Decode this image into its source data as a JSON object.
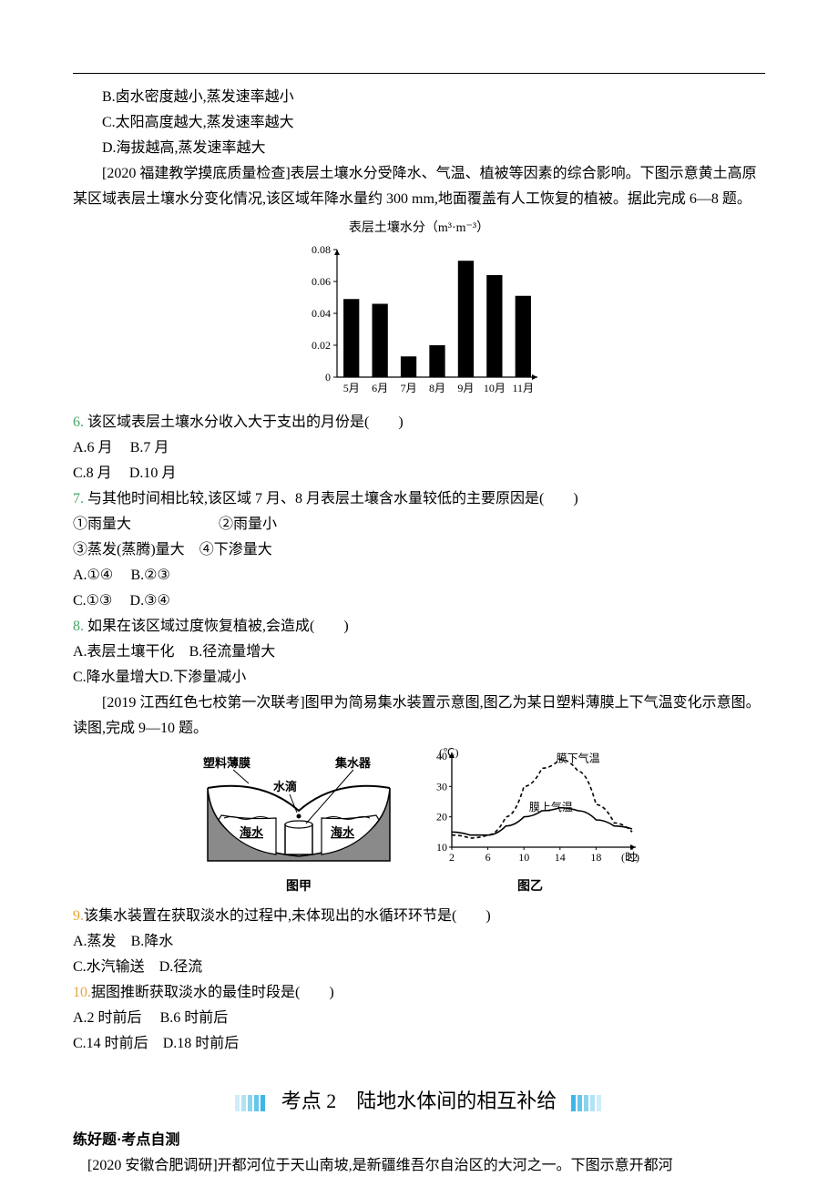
{
  "top_options": {
    "B": "B.卤水密度越小,蒸发速率越小",
    "C": "C.太阳高度越大,蒸发速率越大",
    "D": "D.海拔越高,蒸发速率越大"
  },
  "intro1": {
    "prefix": "[2020 福建教学摸底质量检查]表层土壤水分受降水、气温、植被等因素的综合影响。下图示意黄土高原某区域表层土壤水分变化情况,该区域年降水量约 300 mm,地面覆盖有人工恢复的植被。据此完成 6—8 题。"
  },
  "chart1": {
    "type": "bar",
    "title": "表层土壤水分（m³·m⁻³）",
    "x_labels": [
      "5月",
      "6月",
      "7月",
      "8月",
      "9月",
      "10月",
      "11月"
    ],
    "values": [
      0.049,
      0.046,
      0.013,
      0.02,
      0.073,
      0.064,
      0.051
    ],
    "ylim": [
      0,
      0.08
    ],
    "yticks": [
      0,
      0.02,
      0.04,
      0.06,
      0.08
    ],
    "bar_color": "#000000",
    "axis_color": "#000000",
    "bar_width": 0.55,
    "label_fontsize": 12,
    "title_fontsize": 13
  },
  "q6": {
    "num": "6.",
    "stem": " 该区域表层土壤水分收入大于支出的月份是(　　)",
    "A": "A.6 月",
    "B": "B.7 月",
    "C": "C.8 月",
    "D": "D.10 月"
  },
  "q7": {
    "num": "7.",
    "stem": " 与其他时间相比较,该区域 7 月、8 月表层土壤含水量较低的主要原因是(　　)",
    "c1": "①雨量大",
    "c2": "②雨量小",
    "c3": "③蒸发(蒸腾)量大",
    "c4": "④下渗量大",
    "A": "A.①④",
    "B": "B.②③",
    "C": "C.①③",
    "D": "D.③④"
  },
  "q8": {
    "num": "8.",
    "stem": " 如果在该区域过度恢复植被,会造成(　　)",
    "A": "A.表层土壤干化",
    "B": "B.径流量增大",
    "C": "C.降水量增大",
    "D": "D.下渗量减小"
  },
  "intro2": {
    "text": "[2019 江西红色七校第一次联考]图甲为简易集水装置示意图,图乙为某日塑料薄膜上下气温变化示意图。读图,完成 9—10 题。"
  },
  "fig_jia": {
    "type": "infographic",
    "labels": {
      "film": "塑料薄膜",
      "collector": "集水器",
      "drop": "水滴",
      "seawater_l": "海水",
      "seawater_r": "海水"
    },
    "caption": "图甲",
    "colors": {
      "fill": "#8a8a8a",
      "text": "#000000",
      "stroke": "#000000"
    }
  },
  "fig_yi": {
    "type": "line",
    "caption": "图乙",
    "x_label": "(时)",
    "y_label": "(℃)",
    "xlim": [
      2,
      22
    ],
    "xticks": [
      2,
      6,
      10,
      14,
      18,
      22
    ],
    "ylim": [
      10,
      40
    ],
    "yticks": [
      10,
      20,
      30,
      40
    ],
    "series": [
      {
        "name": "膜下气温",
        "style": "dashed",
        "label_pos": [
          16,
          38
        ],
        "points": [
          [
            2,
            14
          ],
          [
            4,
            13
          ],
          [
            6,
            14
          ],
          [
            8,
            20
          ],
          [
            10,
            30
          ],
          [
            12,
            36
          ],
          [
            14,
            39
          ],
          [
            16,
            35
          ],
          [
            18,
            24
          ],
          [
            20,
            18
          ],
          [
            22,
            15
          ]
        ]
      },
      {
        "name": "膜上气温",
        "style": "solid",
        "label_pos": [
          13,
          22
        ],
        "points": [
          [
            2,
            15
          ],
          [
            4,
            14
          ],
          [
            6,
            14
          ],
          [
            8,
            17
          ],
          [
            10,
            20
          ],
          [
            12,
            22
          ],
          [
            14,
            23
          ],
          [
            16,
            22
          ],
          [
            18,
            19
          ],
          [
            20,
            17
          ],
          [
            22,
            16
          ]
        ]
      }
    ],
    "colors": {
      "axis": "#000000",
      "line": "#000000",
      "text": "#000000"
    },
    "label_fontsize": 12
  },
  "q9": {
    "num": "9.",
    "stem": "该集水装置在获取淡水的过程中,未体现出的水循环环节是(　　)",
    "A": "A.蒸发",
    "B": "B.降水",
    "C": "C.水汽输送",
    "D": "D.径流"
  },
  "q10": {
    "num": "10.",
    "stem": "据图推断获取淡水的最佳时段是(　　)",
    "A": "A.2 时前后",
    "B": "B.6 时前后",
    "C": "C.14 时前后",
    "D": "D.18 时前后"
  },
  "topic": {
    "label_prefix": "考点 2",
    "label_title": "　陆地水体间的相互补给"
  },
  "subhead": "练好题·考点自测",
  "intro3": {
    "text": "　[2020 安徽合肥调研]开都河位于天山南坡,是新疆维吾尔自治区的大河之一。下图示意开都河"
  }
}
